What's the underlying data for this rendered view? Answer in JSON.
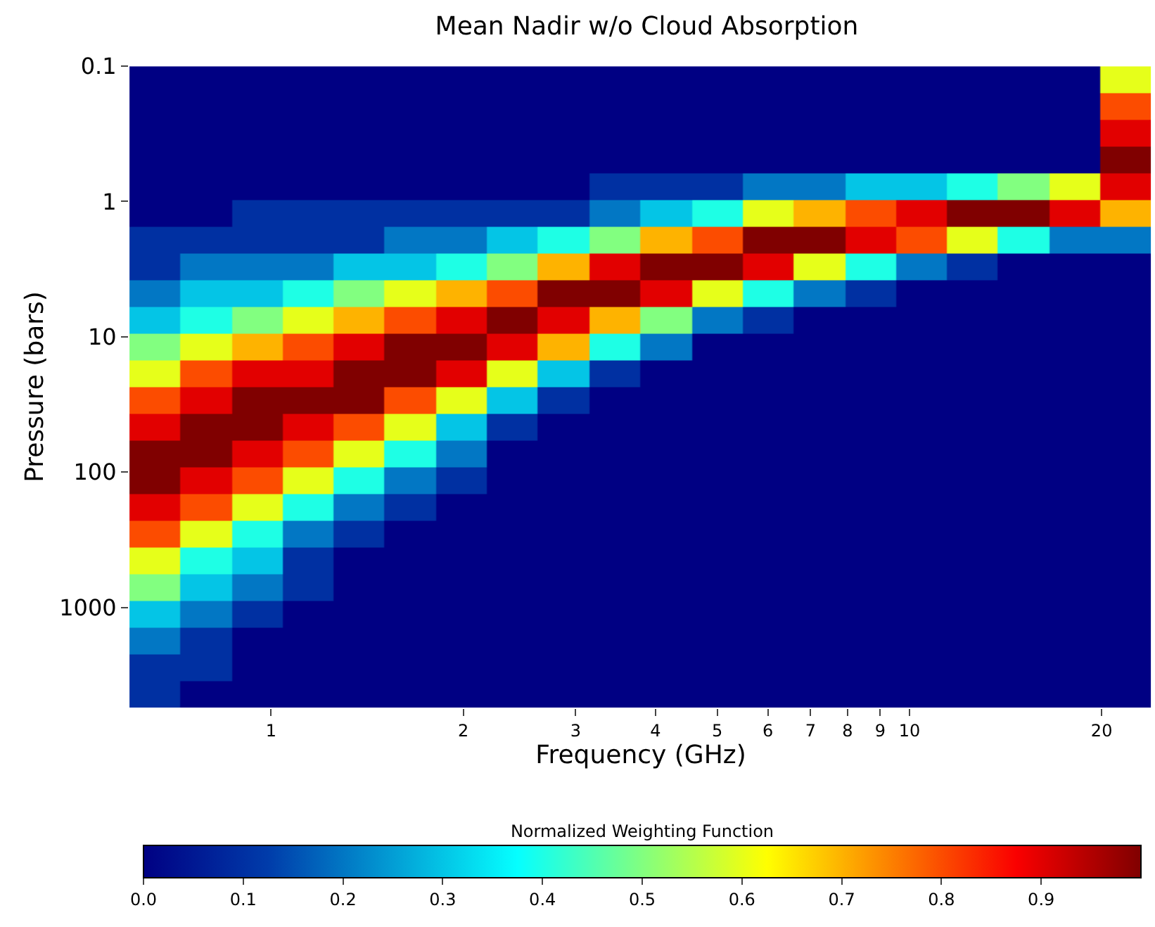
{
  "chart_data": {
    "type": "heatmap",
    "title": "Mean Nadir w/o Cloud Absorption",
    "xlabel": "Frequency (GHz)",
    "ylabel": "Pressure (bars)",
    "clabel": "Normalized Weighting Function",
    "log": "xy",
    "xlim": [
      0.6,
      24
    ],
    "ylim": [
      5500,
      0.1
    ],
    "xticks": [
      1,
      2,
      3,
      4,
      5,
      6,
      7,
      8,
      9,
      10,
      20
    ],
    "yticks": [
      0.1,
      1,
      10,
      100,
      1000
    ],
    "clim": [
      0,
      1
    ],
    "cticks": [
      {
        "value": 0,
        "label": "0.0"
      },
      {
        "value": 0.1,
        "label": "0.1"
      },
      {
        "value": 0.2,
        "label": "0.2"
      },
      {
        "value": 0.3,
        "label": "0.3"
      },
      {
        "value": 0.4,
        "label": "0.4"
      },
      {
        "value": 0.5,
        "label": "0.5"
      },
      {
        "value": 0.6,
        "label": "0.6"
      },
      {
        "value": 0.7,
        "label": "0.7"
      },
      {
        "value": 0.8,
        "label": "0.8"
      },
      {
        "value": 0.9,
        "label": "0.9"
      }
    ],
    "x": [
      0.658,
      0.791,
      0.951,
      1.143,
      1.374,
      1.652,
      1.986,
      2.388,
      2.871,
      3.451,
      4.159,
      5.0,
      6.012,
      7.228,
      8.69,
      10.45,
      12.56,
      15.1,
      18.16,
      21.83
    ],
    "y": [
      0.126,
      0.198,
      0.312,
      0.491,
      0.774,
      1.22,
      1.92,
      3.03,
      4.77,
      7.53,
      11.9,
      18.7,
      29.4,
      46.4,
      73.1,
      115,
      182,
      286,
      451,
      711,
      1120,
      1770,
      2780,
      4390
    ],
    "cells": [
      [
        0,
        0,
        0,
        0,
        0,
        0,
        0,
        0,
        0,
        0,
        0,
        0,
        0,
        0,
        0,
        0,
        0,
        0,
        0,
        0.6
      ],
      [
        0,
        0,
        0,
        0,
        0,
        0,
        0,
        0,
        0,
        0,
        0,
        0,
        0,
        0,
        0,
        0,
        0,
        0,
        0,
        0.8
      ],
      [
        0,
        0,
        0,
        0,
        0,
        0,
        0,
        0,
        0,
        0,
        0,
        0,
        0,
        0,
        0,
        0,
        0,
        0,
        0,
        0.9
      ],
      [
        0,
        0,
        0,
        0,
        0,
        0,
        0,
        0,
        0,
        0,
        0,
        0,
        0,
        0,
        0,
        0,
        0,
        0,
        0,
        1.0
      ],
      [
        0,
        0,
        0,
        0,
        0,
        0,
        0,
        0,
        0,
        0.1,
        0.1,
        0.1,
        0.2,
        0.2,
        0.3,
        0.3,
        0.4,
        0.5,
        0.6,
        0.9
      ],
      [
        0,
        0,
        0.1,
        0.1,
        0.1,
        0.1,
        0.1,
        0.1,
        0.1,
        0.2,
        0.3,
        0.4,
        0.6,
        0.7,
        0.8,
        0.9,
        1.0,
        1.0,
        0.9,
        0.7
      ],
      [
        0.1,
        0.1,
        0.1,
        0.1,
        0.1,
        0.2,
        0.2,
        0.3,
        0.4,
        0.5,
        0.7,
        0.8,
        1.0,
        1.0,
        0.9,
        0.8,
        0.6,
        0.4,
        0.2,
        0.2
      ],
      [
        0.1,
        0.2,
        0.2,
        0.2,
        0.3,
        0.3,
        0.4,
        0.5,
        0.7,
        0.9,
        1.0,
        1.0,
        0.9,
        0.6,
        0.4,
        0.2,
        0.1,
        0,
        0,
        0
      ],
      [
        0.2,
        0.3,
        0.3,
        0.4,
        0.5,
        0.6,
        0.7,
        0.8,
        1.0,
        1.0,
        0.9,
        0.6,
        0.4,
        0.2,
        0.1,
        0,
        0,
        0,
        0,
        0
      ],
      [
        0.3,
        0.4,
        0.5,
        0.6,
        0.7,
        0.8,
        0.9,
        1.0,
        0.9,
        0.7,
        0.5,
        0.2,
        0.1,
        0,
        0,
        0,
        0,
        0,
        0,
        0
      ],
      [
        0.5,
        0.6,
        0.7,
        0.8,
        0.9,
        1.0,
        1.0,
        0.9,
        0.7,
        0.4,
        0.2,
        0,
        0,
        0,
        0,
        0,
        0,
        0,
        0,
        0
      ],
      [
        0.6,
        0.8,
        0.9,
        0.9,
        1.0,
        1.0,
        0.9,
        0.6,
        0.3,
        0.1,
        0,
        0,
        0,
        0,
        0,
        0,
        0,
        0,
        0,
        0
      ],
      [
        0.8,
        0.9,
        1.0,
        1.0,
        1.0,
        0.8,
        0.6,
        0.3,
        0.1,
        0,
        0,
        0,
        0,
        0,
        0,
        0,
        0,
        0,
        0,
        0
      ],
      [
        0.9,
        1.0,
        1.0,
        0.9,
        0.8,
        0.6,
        0.3,
        0.1,
        0,
        0,
        0,
        0,
        0,
        0,
        0,
        0,
        0,
        0,
        0,
        0
      ],
      [
        1.0,
        1.0,
        0.9,
        0.8,
        0.6,
        0.4,
        0.2,
        0,
        0,
        0,
        0,
        0,
        0,
        0,
        0,
        0,
        0,
        0,
        0,
        0
      ],
      [
        1.0,
        0.9,
        0.8,
        0.6,
        0.4,
        0.2,
        0.1,
        0,
        0,
        0,
        0,
        0,
        0,
        0,
        0,
        0,
        0,
        0,
        0,
        0
      ],
      [
        0.9,
        0.8,
        0.6,
        0.4,
        0.2,
        0.1,
        0,
        0,
        0,
        0,
        0,
        0,
        0,
        0,
        0,
        0,
        0,
        0,
        0,
        0
      ],
      [
        0.8,
        0.6,
        0.4,
        0.2,
        0.1,
        0,
        0,
        0,
        0,
        0,
        0,
        0,
        0,
        0,
        0,
        0,
        0,
        0,
        0,
        0
      ],
      [
        0.6,
        0.4,
        0.3,
        0.1,
        0,
        0,
        0,
        0,
        0,
        0,
        0,
        0,
        0,
        0,
        0,
        0,
        0,
        0,
        0,
        0
      ],
      [
        0.5,
        0.3,
        0.2,
        0.1,
        0,
        0,
        0,
        0,
        0,
        0,
        0,
        0,
        0,
        0,
        0,
        0,
        0,
        0,
        0,
        0
      ],
      [
        0.3,
        0.2,
        0.1,
        0,
        0,
        0,
        0,
        0,
        0,
        0,
        0,
        0,
        0,
        0,
        0,
        0,
        0,
        0,
        0,
        0
      ],
      [
        0.2,
        0.1,
        0,
        0,
        0,
        0,
        0,
        0,
        0,
        0,
        0,
        0,
        0,
        0,
        0,
        0,
        0,
        0,
        0,
        0
      ],
      [
        0.1,
        0.1,
        0,
        0,
        0,
        0,
        0,
        0,
        0,
        0,
        0,
        0,
        0,
        0,
        0,
        0,
        0,
        0,
        0,
        0
      ],
      [
        0.1,
        0,
        0,
        0,
        0,
        0,
        0,
        0,
        0,
        0,
        0,
        0,
        0,
        0,
        0,
        0,
        0,
        0,
        0,
        0
      ]
    ]
  }
}
